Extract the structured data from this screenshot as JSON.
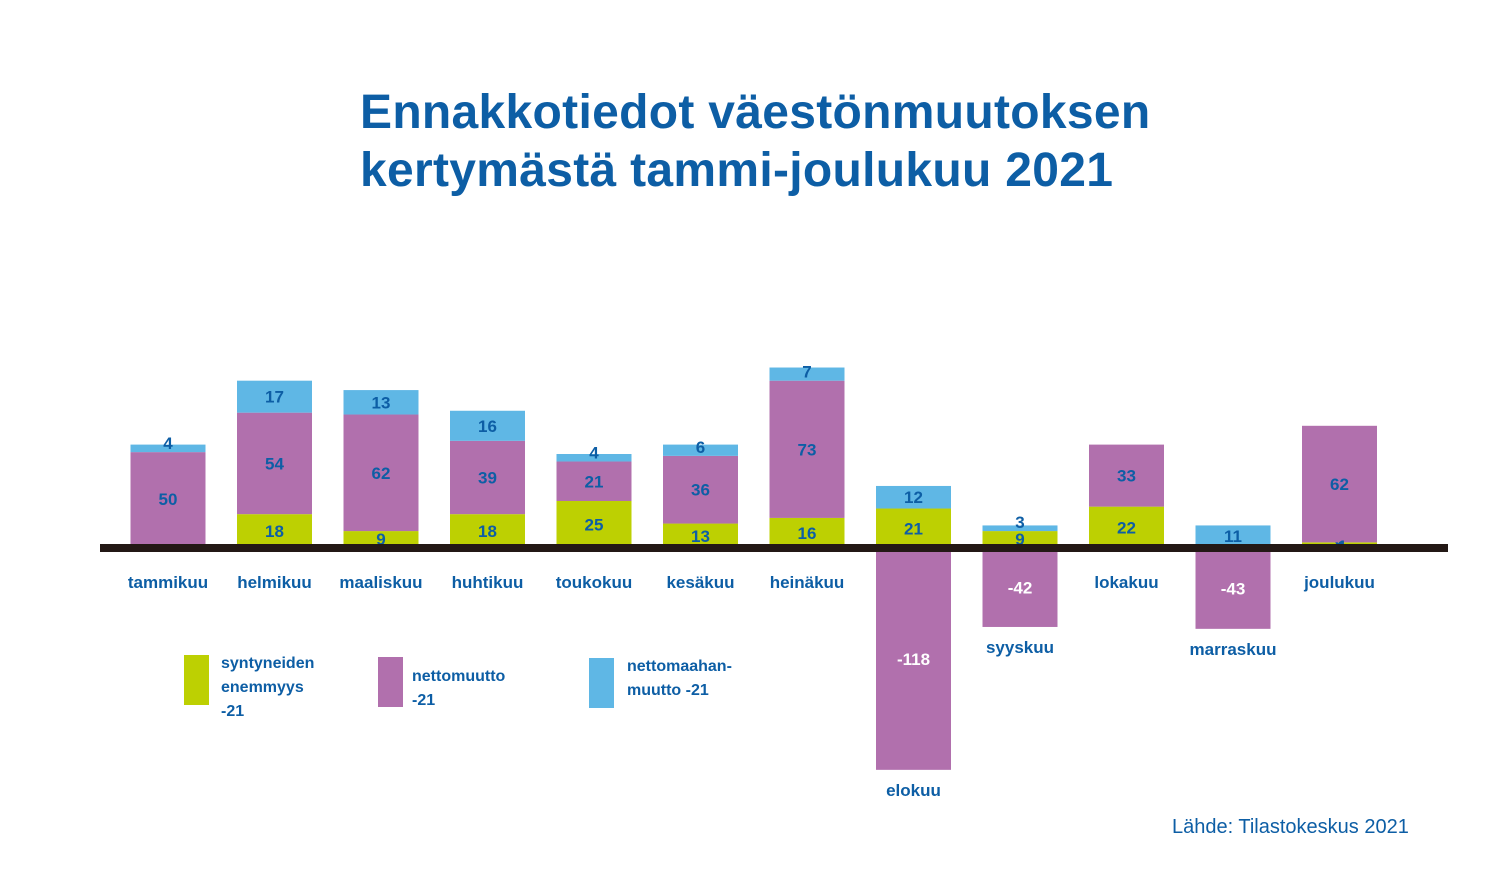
{
  "chart_data": {
    "type": "bar",
    "stacked": true,
    "title_lines": [
      "Ennakkotiedot väestönmuutoksen",
      "kertymästä tammi-joulukuu 2021"
    ],
    "categories": [
      "tammikuu",
      "helmikuu",
      "maaliskuu",
      "huhtikuu",
      "toukokuu",
      "kesäkuu",
      "heinäkuu",
      "elokuu",
      "syyskuu",
      "lokakuu",
      "marraskuu",
      "joulukuu"
    ],
    "series": [
      {
        "name": "syntyneiden enemmyys -21",
        "color": "#bdd002",
        "values": [
          1,
          18,
          9,
          18,
          25,
          13,
          16,
          21,
          9,
          22,
          1,
          3
        ]
      },
      {
        "name": "nettomuutto -21",
        "color": "#b170ad",
        "values": [
          50,
          54,
          62,
          39,
          21,
          36,
          73,
          -118,
          -42,
          33,
          -43,
          62
        ]
      },
      {
        "name": "nettomaahan-muutto -21",
        "color": "#5fb7e5",
        "values": [
          4,
          17,
          13,
          16,
          4,
          6,
          7,
          12,
          3,
          null,
          11,
          -1
        ]
      }
    ],
    "legend": [
      {
        "label": "syntyneiden\nenemmyys -21",
        "color": "#bdd002"
      },
      {
        "label": "nettomuutto -21",
        "color": "#b170ad"
      },
      {
        "label": "nettomaahan-\nmuutto -21",
        "color": "#5fb7e5"
      }
    ],
    "legend_position": "bottom-left",
    "ylim": [
      -118,
      96
    ],
    "grid": false,
    "xlabel": "",
    "ylabel": "",
    "source": "Lähde: Tilastokeskus 2021"
  },
  "colors": {
    "title": "#0d5ea5",
    "label": "#0d5ea5",
    "value_label_dark": "#0d5ea5",
    "value_label_light": "#ffffff",
    "baseline": "#231815"
  }
}
